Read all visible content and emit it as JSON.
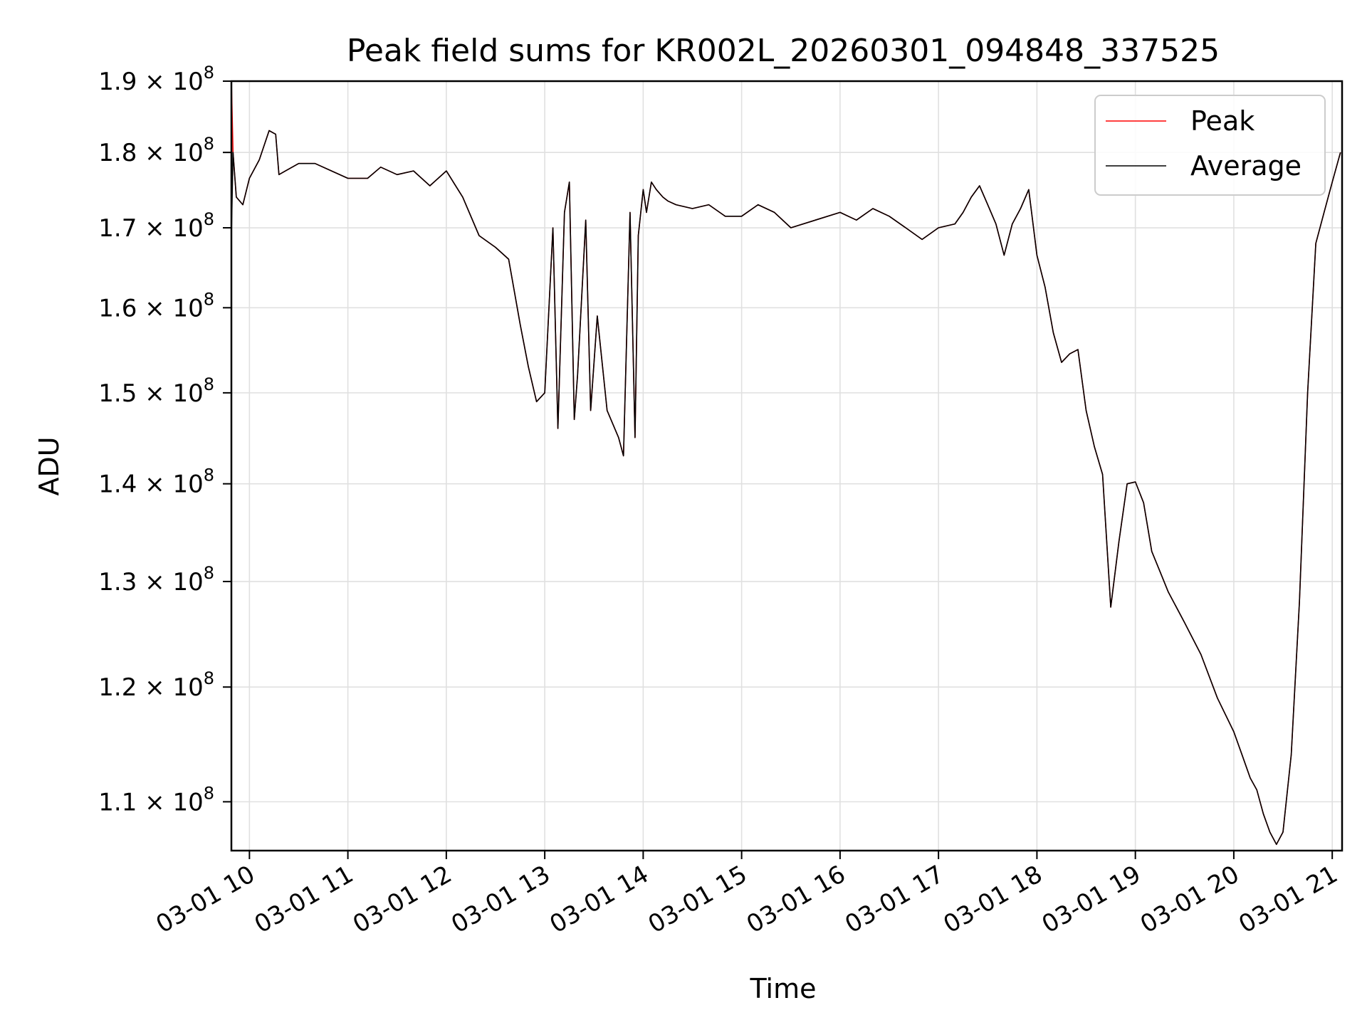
{
  "chart_data": {
    "type": "line",
    "title": "Peak field sums for KR002L_20260301_094848_337525",
    "xlabel": "Time",
    "ylabel": "ADU",
    "yscale": "log",
    "grid": true,
    "legend_position": "top-right",
    "xlim": [
      "03-01 09:49",
      "03-01 21:06"
    ],
    "ylim": [
      106000000,
      190000000
    ],
    "x_tick_labels": [
      "03-01 10",
      "03-01 11",
      "03-01 12",
      "03-01 13",
      "03-01 14",
      "03-01 15",
      "03-01 16",
      "03-01 17",
      "03-01 18",
      "03-01 19",
      "03-01 20",
      "03-01 21"
    ],
    "y_ticks": [
      {
        "value": 110000000,
        "mantissa": "1.1",
        "exponent": "8"
      },
      {
        "value": 120000000,
        "mantissa": "1.2",
        "exponent": "8"
      },
      {
        "value": 130000000,
        "mantissa": "1.3",
        "exponent": "8"
      },
      {
        "value": 140000000,
        "mantissa": "1.4",
        "exponent": "8"
      },
      {
        "value": 150000000,
        "mantissa": "1.5",
        "exponent": "8"
      },
      {
        "value": 160000000,
        "mantissa": "1.6",
        "exponent": "8"
      },
      {
        "value": 170000000,
        "mantissa": "1.7",
        "exponent": "8"
      },
      {
        "value": 180000000,
        "mantissa": "1.8",
        "exponent": "8"
      },
      {
        "value": 190000000,
        "mantissa": "1.9",
        "exponent": "8"
      }
    ],
    "series": [
      {
        "name": "Peak",
        "color": "#ff0000"
      },
      {
        "name": "Average",
        "color": "#000000"
      }
    ],
    "x": [
      "03-01 09:49",
      "03-01 09:50",
      "03-01 09:52",
      "03-01 09:56",
      "03-01 10:00",
      "03-01 10:06",
      "03-01 10:12",
      "03-01 10:16",
      "03-01 10:18",
      "03-01 10:22",
      "03-01 10:30",
      "03-01 10:40",
      "03-01 10:50",
      "03-01 11:00",
      "03-01 11:12",
      "03-01 11:20",
      "03-01 11:30",
      "03-01 11:40",
      "03-01 11:50",
      "03-01 12:00",
      "03-01 12:10",
      "03-01 12:20",
      "03-01 12:30",
      "03-01 12:38",
      "03-01 12:45",
      "03-01 12:50",
      "03-01 12:55",
      "03-01 13:00",
      "03-01 13:05",
      "03-01 13:08",
      "03-01 13:12",
      "03-01 13:15",
      "03-01 13:18",
      "03-01 13:20",
      "03-01 13:25",
      "03-01 13:28",
      "03-01 13:32",
      "03-01 13:38",
      "03-01 13:45",
      "03-01 13:48",
      "03-01 13:52",
      "03-01 13:55",
      "03-01 13:57",
      "03-01 14:00",
      "03-01 14:02",
      "03-01 14:05",
      "03-01 14:08",
      "03-01 14:12",
      "03-01 14:15",
      "03-01 14:20",
      "03-01 14:30",
      "03-01 14:40",
      "03-01 14:50",
      "03-01 15:00",
      "03-01 15:10",
      "03-01 15:20",
      "03-01 15:30",
      "03-01 15:45",
      "03-01 16:00",
      "03-01 16:10",
      "03-01 16:20",
      "03-01 16:30",
      "03-01 16:40",
      "03-01 16:50",
      "03-01 17:00",
      "03-01 17:10",
      "03-01 17:15",
      "03-01 17:20",
      "03-01 17:25",
      "03-01 17:30",
      "03-01 17:35",
      "03-01 17:40",
      "03-01 17:45",
      "03-01 17:50",
      "03-01 17:55",
      "03-01 18:00",
      "03-01 18:05",
      "03-01 18:10",
      "03-01 18:15",
      "03-01 18:20",
      "03-01 18:25",
      "03-01 18:30",
      "03-01 18:35",
      "03-01 18:40",
      "03-01 18:45",
      "03-01 18:50",
      "03-01 18:55",
      "03-01 19:00",
      "03-01 19:05",
      "03-01 19:10",
      "03-01 19:15",
      "03-01 19:20",
      "03-01 19:30",
      "03-01 19:40",
      "03-01 19:50",
      "03-01 20:00",
      "03-01 20:05",
      "03-01 20:10",
      "03-01 20:14",
      "03-01 20:16",
      "03-01 20:18",
      "03-01 20:22",
      "03-01 20:26",
      "03-01 20:30",
      "03-01 20:35",
      "03-01 20:40",
      "03-01 20:45",
      "03-01 20:50",
      "03-01 20:55",
      "03-01 21:00",
      "03-01 21:05"
    ],
    "peak": [
      190000000,
      180000000,
      174000000,
      173000000,
      176500000,
      179000000,
      183000000,
      182500000,
      177000000,
      177500000,
      178500000,
      178500000,
      177500000,
      176500000,
      176500000,
      178000000,
      177000000,
      177500000,
      175500000,
      177500000,
      174000000,
      169000000,
      167500000,
      166000000,
      158000000,
      153000000,
      149000000,
      150000000,
      170000000,
      146000000,
      172000000,
      176000000,
      147000000,
      152000000,
      171000000,
      148000000,
      159000000,
      148000000,
      145000000,
      143000000,
      172000000,
      145000000,
      169000000,
      175000000,
      172000000,
      176000000,
      175000000,
      174000000,
      173500000,
      173000000,
      172500000,
      173000000,
      171500000,
      171500000,
      173000000,
      172000000,
      170000000,
      171000000,
      172000000,
      171000000,
      172500000,
      171500000,
      170000000,
      168500000,
      170000000,
      170500000,
      172000000,
      174000000,
      175500000,
      173000000,
      170500000,
      166500000,
      170500000,
      172500000,
      175000000,
      166500000,
      162500000,
      157000000,
      153500000,
      154500000,
      155000000,
      148000000,
      144000000,
      141000000,
      127500000,
      134000000,
      140000000,
      140200000,
      138000000,
      133000000,
      131000000,
      129000000,
      126000000,
      123000000,
      119000000,
      116000000,
      114000000,
      112000000,
      111000000,
      110000000,
      109000000,
      107500000,
      106500000,
      107500000,
      114000000,
      128000000,
      150000000,
      168000000,
      172000000,
      176000000,
      180000000
    ],
    "average": [
      169000000,
      180000000,
      174000000,
      173000000,
      176500000,
      179000000,
      183000000,
      182500000,
      177000000,
      177500000,
      178500000,
      178500000,
      177500000,
      176500000,
      176500000,
      178000000,
      177000000,
      177500000,
      175500000,
      177500000,
      174000000,
      169000000,
      167500000,
      166000000,
      158000000,
      153000000,
      149000000,
      150000000,
      170000000,
      146000000,
      172000000,
      176000000,
      147000000,
      152000000,
      171000000,
      148000000,
      159000000,
      148000000,
      145000000,
      143000000,
      172000000,
      145000000,
      169000000,
      175000000,
      172000000,
      176000000,
      175000000,
      174000000,
      173500000,
      173000000,
      172500000,
      173000000,
      171500000,
      171500000,
      173000000,
      172000000,
      170000000,
      171000000,
      172000000,
      171000000,
      172500000,
      171500000,
      170000000,
      168500000,
      170000000,
      170500000,
      172000000,
      174000000,
      175500000,
      173000000,
      170500000,
      166500000,
      170500000,
      172500000,
      175000000,
      166500000,
      162500000,
      157000000,
      153500000,
      154500000,
      155000000,
      148000000,
      144000000,
      141000000,
      127500000,
      134000000,
      140000000,
      140200000,
      138000000,
      133000000,
      131000000,
      129000000,
      126000000,
      123000000,
      119000000,
      116000000,
      114000000,
      112000000,
      111000000,
      110000000,
      109000000,
      107500000,
      106500000,
      107500000,
      114000000,
      128000000,
      150000000,
      168000000,
      172000000,
      176000000,
      180000000
    ]
  }
}
